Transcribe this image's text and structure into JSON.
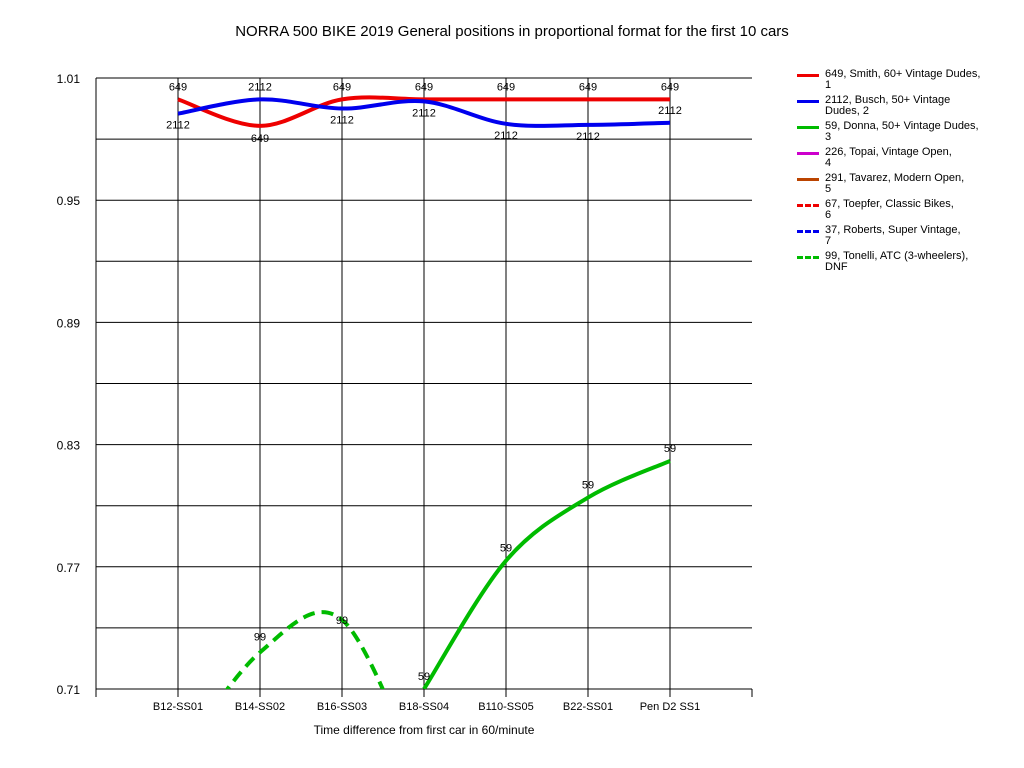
{
  "chart_data": {
    "type": "line",
    "title": "NORRA 500 BIKE 2019  General positions in proportional format for the first 10 cars",
    "xlabel": "Time difference from first car in 60/minute",
    "ylabel": "",
    "categories": [
      "B12-SS01",
      "B14-SS02",
      "B16-SS03",
      "B18-SS04",
      "B110-SS05",
      "B22-SS01",
      "Pen D2 SS1"
    ],
    "y_ticks": [
      "0.71",
      "0.77",
      "0.83",
      "0.89",
      "0.95",
      "1.01"
    ],
    "ylim": [
      0.71,
      1.01
    ],
    "grid": true,
    "legend_position": "right",
    "series": [
      {
        "name": "649, Smith, 60+ Vintage Dudes,\n1",
        "label": "649",
        "color": "#ee0000",
        "dash": false,
        "values": [
          0.9995,
          0.9865,
          0.9995,
          0.9995,
          0.9995,
          0.9995,
          0.9995
        ]
      },
      {
        "name": "2112, Busch, 50+ Vintage\nDudes, 2",
        "label": "2112",
        "color": "#0000ee",
        "dash": false,
        "values": [
          0.9925,
          0.9995,
          0.995,
          0.9985,
          0.9875,
          0.987,
          0.988
        ]
      },
      {
        "name": "59, Donna, 50+ Vintage Dudes,\n3",
        "label": "59",
        "color": "#00bb00",
        "dash": false,
        "values": [
          null,
          null,
          null,
          0.71,
          0.773,
          0.804,
          0.822
        ]
      },
      {
        "name": "226, Topai, Vintage Open,\n4",
        "label": "226",
        "color": "#cc00cc",
        "dash": false,
        "values": [
          null,
          null,
          null,
          null,
          null,
          null,
          null
        ]
      },
      {
        "name": "291, Tavarez, Modern Open,\n5",
        "label": "291",
        "color": "#bb4400",
        "dash": false,
        "values": [
          null,
          null,
          null,
          null,
          null,
          null,
          null
        ]
      },
      {
        "name": "67, Toepfer, Classic Bikes,\n6",
        "label": "67",
        "color": "#ee0000",
        "dash": true,
        "values": [
          null,
          null,
          null,
          null,
          null,
          null,
          null
        ]
      },
      {
        "name": "37, Roberts, Super Vintage,\n7",
        "label": "37",
        "color": "#0000ee",
        "dash": true,
        "values": [
          null,
          null,
          null,
          null,
          null,
          null,
          null
        ]
      },
      {
        "name": "99, Tonelli, ATC (3-wheelers),\nDNF",
        "label": "99",
        "color": "#00bb00",
        "dash": true,
        "values": [
          0.676,
          0.728,
          0.744,
          0.662,
          null,
          null,
          null
        ]
      }
    ]
  }
}
